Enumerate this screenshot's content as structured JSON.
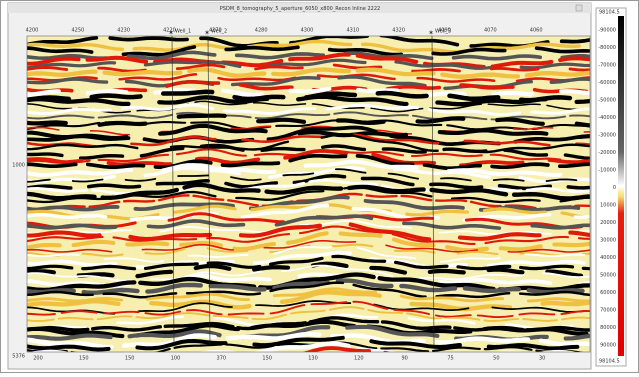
{
  "window": {
    "title": "PSDM_8_tomography_5_aperture_6050_x800_Recon Inline 2222"
  },
  "section": {
    "top_axis_labels": [
      "4200",
      "4250",
      "4230",
      "4220",
      "4270",
      "4280",
      "4300",
      "4310",
      "4320",
      "4090",
      "4070",
      "4060"
    ],
    "left_axis_labels": [
      "1000",
      "5376"
    ],
    "bottom_axis_labels": [
      "200",
      "150",
      "150",
      "100",
      "370",
      "150",
      "130",
      "120",
      "90",
      "75",
      "50",
      "30"
    ],
    "wells": [
      "Well_1",
      "Well_2",
      "Well_3"
    ]
  },
  "colorbar": {
    "top_label": "98104.5",
    "bottom_label": "98104.5",
    "tick_labels": [
      "-90000",
      "-80000",
      "-70000",
      "-60000",
      "-50000",
      "-40000",
      "-30000",
      "-20000",
      "-10000",
      "0",
      "10000",
      "20000",
      "30000",
      "40000",
      "50000",
      "60000",
      "70000",
      "80000",
      "90000"
    ]
  }
}
